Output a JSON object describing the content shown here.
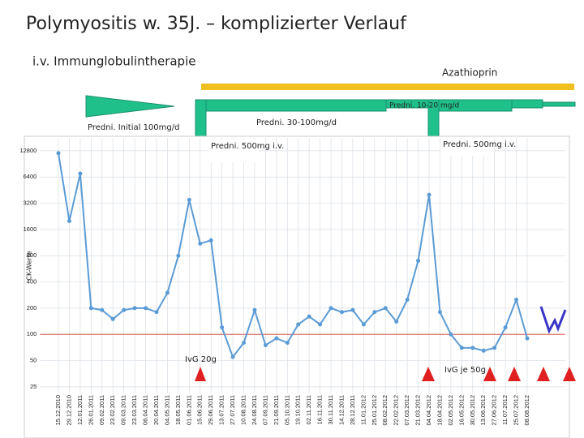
{
  "title": "Polymyositis w. 35J. – komplizierter Verlauf",
  "annotations": {
    "ivig_therapy": "i.v. Immunglobulintherapie",
    "azathioprin": "Azathioprin",
    "predni_initial": "Predni. Initial 100mg/d",
    "predni_30_100": "Predni. 30-100mg/d",
    "predni_500_a": "Predni. 500mg i.v.",
    "predni_10_20": "Predni. 10-20 mg/d",
    "predni_500_b": "Predni. 500mg i.v.",
    "ivg_20": "IvG 20g",
    "ivg_50": "IvG je 50g"
  },
  "chart_data": {
    "type": "line",
    "ylabel": "CK-Werte",
    "log_scale": true,
    "grid": true,
    "color": "#5b9bd5",
    "reference_line": {
      "value": 100,
      "color": "#d9534f"
    },
    "ylim": [
      21,
      18000
    ],
    "yticks": [
      25,
      50,
      100,
      200,
      400,
      800,
      1600,
      3200,
      6400,
      12800
    ],
    "categories": [
      "15.12.2010",
      "29.12.2010",
      "12.01.2011",
      "26.01.2011",
      "09.02.2011",
      "23.02.2011",
      "09.03.2011",
      "23.03.2011",
      "06.04.2011",
      "20.04.2011",
      "04.05.2011",
      "18.05.2011",
      "01.06.2011",
      "15.06.2011",
      "29.06.2011",
      "13.07.2011",
      "27.07.2011",
      "10.08.2011",
      "24.08.2011",
      "07.09.2011",
      "21.09.2011",
      "05.10.2011",
      "19.10.2011",
      "02.11.2011",
      "16.11.2011",
      "30.11.2011",
      "14.12.2011",
      "28.12.2011",
      "11.01.2012",
      "25.01.2012",
      "08.02.2012",
      "22.02.2012",
      "07.03.2012",
      "21.03.2012",
      "04.04.2012",
      "18.04.2012",
      "02.05.2012",
      "16.05.2012",
      "30.05.2012",
      "13.06.2012",
      "27.06.2012",
      "11.07.2012",
      "25.07.2012",
      "08.08.2012"
    ],
    "values": [
      12000,
      2000,
      7000,
      200,
      190,
      150,
      190,
      200,
      200,
      180,
      300,
      800,
      3500,
      1100,
      1200,
      120,
      55,
      80,
      190,
      75,
      90,
      80,
      130,
      160,
      130,
      200,
      180,
      190,
      130,
      180,
      200,
      140,
      250,
      700,
      4000,
      180,
      100,
      70,
      70,
      65,
      70,
      120,
      250,
      90
    ]
  }
}
